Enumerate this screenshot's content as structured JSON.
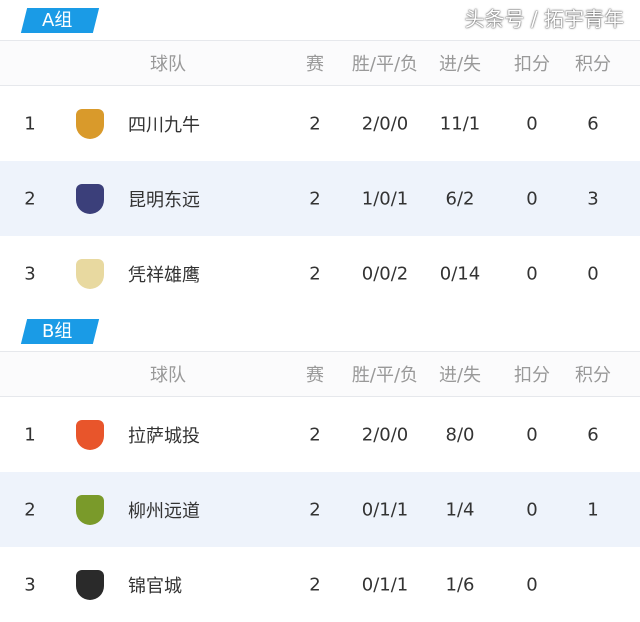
{
  "headers": {
    "team": "球队",
    "played": "赛",
    "wdl": "胜/平/负",
    "goals": "进/失",
    "deduct": "扣分",
    "points": "积分"
  },
  "groups": [
    {
      "label": "A组",
      "rows": [
        {
          "rank": "1",
          "team": "四川九牛",
          "played": "2",
          "wdl": "2/0/0",
          "goals": "11/1",
          "deduct": "0",
          "points": "6",
          "logo_color": "#d99a2b"
        },
        {
          "rank": "2",
          "team": "昆明东远",
          "played": "2",
          "wdl": "1/0/1",
          "goals": "6/2",
          "deduct": "0",
          "points": "3",
          "logo_color": "#3b3f7a"
        },
        {
          "rank": "3",
          "team": "凭祥雄鹰",
          "played": "2",
          "wdl": "0/0/2",
          "goals": "0/14",
          "deduct": "0",
          "points": "0",
          "logo_color": "#e8d9a0"
        }
      ]
    },
    {
      "label": "B组",
      "rows": [
        {
          "rank": "1",
          "team": "拉萨城投",
          "played": "2",
          "wdl": "2/0/0",
          "goals": "8/0",
          "deduct": "0",
          "points": "6",
          "logo_color": "#e8552b"
        },
        {
          "rank": "2",
          "team": "柳州远道",
          "played": "2",
          "wdl": "0/1/1",
          "goals": "1/4",
          "deduct": "0",
          "points": "1",
          "logo_color": "#7a9a2a"
        },
        {
          "rank": "3",
          "team": "锦官城",
          "played": "2",
          "wdl": "0/1/1",
          "goals": "1/6",
          "deduct": "0",
          "points": "",
          "logo_color": "#2a2a2a"
        }
      ]
    }
  ],
  "watermark": "头条号 / 拓宇青年",
  "accent": "#1a9be6"
}
